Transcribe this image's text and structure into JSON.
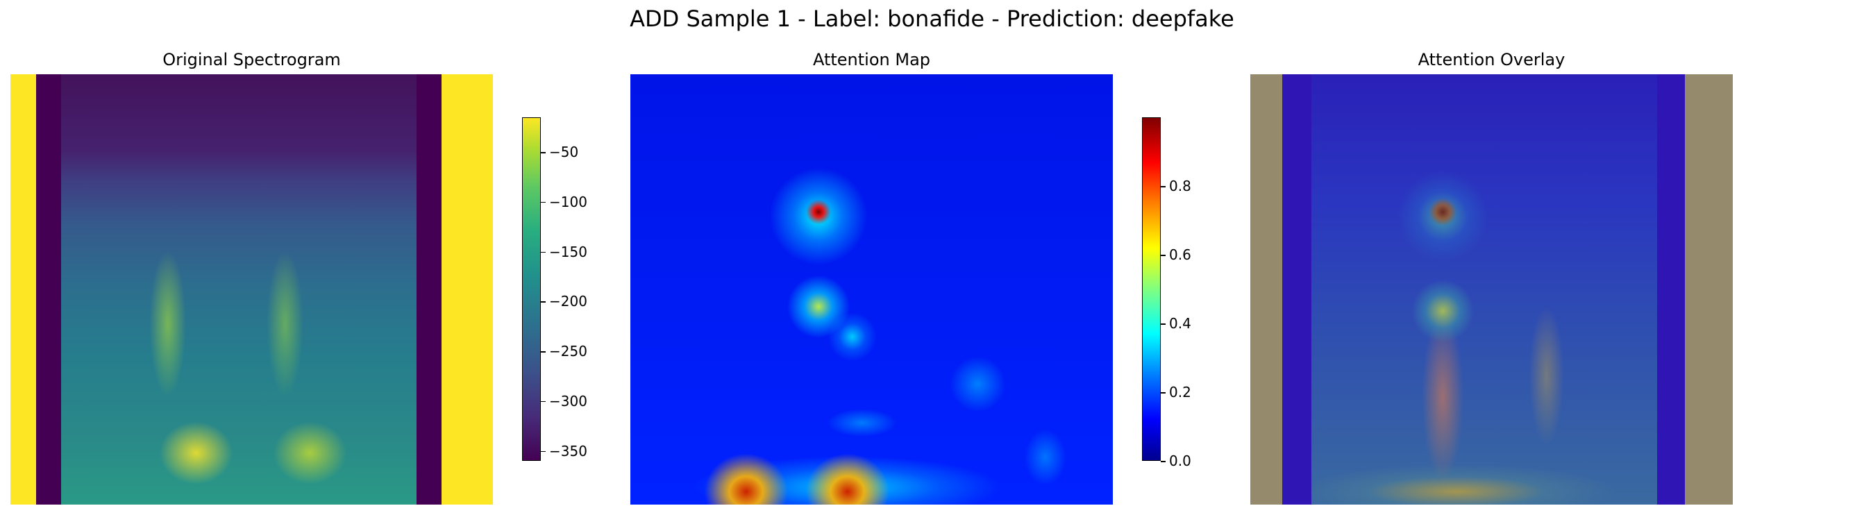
{
  "suptitle": "ADD Sample 1 - Label: bonafide - Prediction: deepfake",
  "panels": {
    "spectrogram_title": "Original Spectrogram",
    "attention_title": "Attention Map",
    "overlay_title": "Attention Overlay"
  },
  "colors": {
    "viridis_low": "#440154",
    "viridis_high": "#fde725",
    "jet_low": "#00008f",
    "jet_high": "#800000",
    "overlay_pad": "#968a6c"
  },
  "chart_data": [
    {
      "type": "heatmap",
      "title": "Original Spectrogram",
      "colormap": "viridis",
      "colorbar": {
        "ticks": [
          "−50",
          "−100",
          "−150",
          "−200",
          "−250",
          "−300",
          "−350"
        ],
        "tick_values": [
          -50,
          -100,
          -150,
          -200,
          -250,
          -300,
          -350
        ],
        "range": [
          -360,
          -15
        ]
      }
    },
    {
      "type": "heatmap",
      "title": "Attention Map",
      "colormap": "jet",
      "colorbar": {
        "ticks": [
          "0.0",
          "0.2",
          "0.4",
          "0.6",
          "0.8"
        ],
        "tick_values": [
          0.0,
          0.2,
          0.4,
          0.6,
          0.8
        ],
        "range": [
          0.0,
          1.0
        ]
      }
    },
    {
      "type": "heatmap",
      "title": "Attention Overlay",
      "colormap": "jet over viridis"
    }
  ]
}
